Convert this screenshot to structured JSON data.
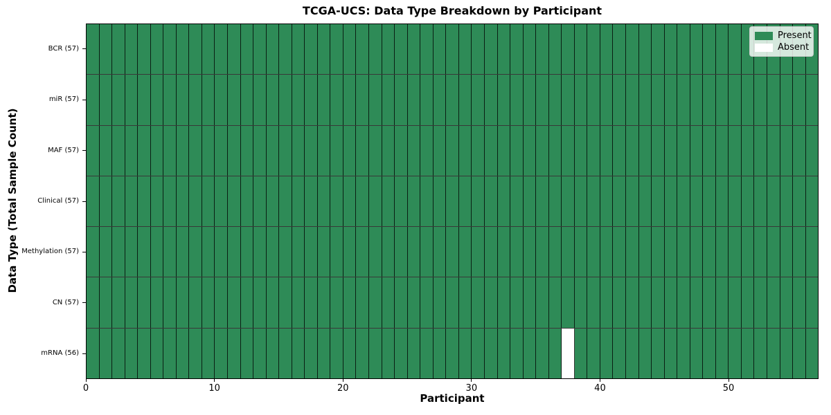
{
  "title": "TCGA-UCS: Data Type Breakdown by Participant",
  "chart_data": {
    "type": "heatmap",
    "title": "TCGA-UCS: Data Type Breakdown by Participant",
    "xlabel": "Participant",
    "ylabel": "Data Type (Total Sample Count)",
    "xlim": [
      0,
      57
    ],
    "n_participants": 57,
    "x_ticks": [
      0,
      10,
      20,
      30,
      40,
      50
    ],
    "grid": "cell-borders",
    "rows": [
      {
        "label": "BCR (57)",
        "data_type": "BCR",
        "total_samples": 57,
        "absent_participants": []
      },
      {
        "label": "miR (57)",
        "data_type": "miR",
        "total_samples": 57,
        "absent_participants": []
      },
      {
        "label": "MAF (57)",
        "data_type": "MAF",
        "total_samples": 57,
        "absent_participants": []
      },
      {
        "label": "Clinical (57)",
        "data_type": "Clinical",
        "total_samples": 57,
        "absent_participants": []
      },
      {
        "label": "Methylation (57)",
        "data_type": "Methylation",
        "total_samples": 57,
        "absent_participants": []
      },
      {
        "label": "CN (57)",
        "data_type": "CN",
        "total_samples": 57,
        "absent_participants": []
      },
      {
        "label": "mRNA (56)",
        "data_type": "mRNA",
        "total_samples": 56,
        "absent_participants": [
          37
        ]
      }
    ],
    "legend": {
      "position": "upper right",
      "entries": [
        {
          "label": "Present",
          "color": "#2E8B57"
        },
        {
          "label": "Absent",
          "color": "#FFFFFF"
        }
      ]
    },
    "colors": {
      "present": "#2E8B57",
      "absent": "#FFFFFF",
      "cell_edge": "#1c1c1c",
      "spine": "#000000"
    }
  }
}
